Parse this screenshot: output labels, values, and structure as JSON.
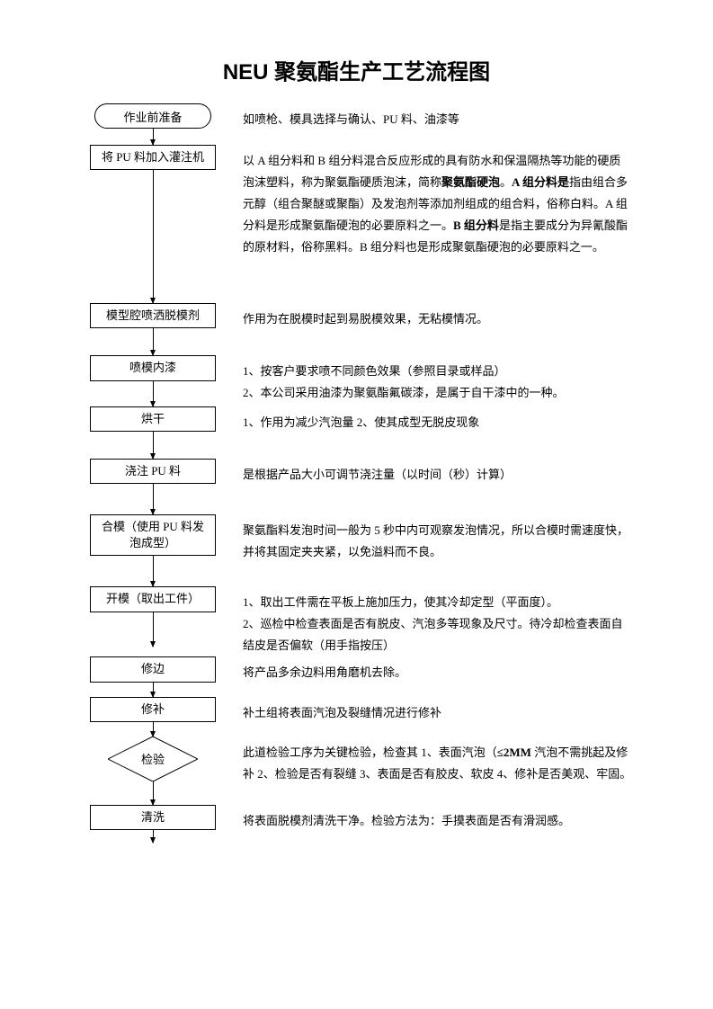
{
  "title": "NEU 聚氨酯生产工艺流程图",
  "colors": {
    "background": "#ffffff",
    "text": "#000000",
    "border": "#000000"
  },
  "flowchart": {
    "type": "flowchart",
    "orientation": "vertical",
    "node_border_color": "#000000",
    "node_fill": "#ffffff",
    "font_size_label": 13,
    "font_size_desc": 13,
    "arrow_length_default": 18,
    "nodes": [
      {
        "id": "n1",
        "shape": "terminator",
        "label": "作业前准备",
        "desc": "如喷枪、模具选择与确认、PU 料、油漆等",
        "arrow_after": 18
      },
      {
        "id": "n2",
        "shape": "process",
        "label": "将 PU 料加入灌注机",
        "desc_parts": [
          {
            "text": " 以 A 组分料和 B 组分料混合反应形成的具有防水和保温隔热等功能的硬质泡沫塑料，称为聚氨酯硬质泡沫，简称"
          },
          {
            "text": "聚氨酯硬泡",
            "bold": true
          },
          {
            "text": "。"
          },
          {
            "text": "A 组分料是",
            "bold": true
          },
          {
            "text": "指由组合多元醇（组合聚醚或聚酯）及发泡剂等添加剂组成的组合料，俗称白料。A 组分料是形成聚氨酯硬泡的必要原料之一。"
          },
          {
            "text": "B 组分料",
            "bold": true
          },
          {
            "text": "是指主要成分为异氰酸酯的原材料，俗称黑料。B 组分料也是形成聚氨酯硬泡的必要原料之一。"
          }
        ],
        "arrow_after": 148
      },
      {
        "id": "n3",
        "shape": "process",
        "label": "模型腔喷洒脱模剂",
        "desc": "作用为在脱模时起到易脱模效果，无粘模情况。",
        "arrow_after": 30
      },
      {
        "id": "n4",
        "shape": "process",
        "label": "喷模内漆",
        "desc": "1、按客户要求喷不同颜色效果（参照目录或样品）\n2、本公司采用油漆为聚氨酯氟碳漆，是属于自干漆中的一种。",
        "arrow_after": 28
      },
      {
        "id": "n5",
        "shape": "process",
        "label": "烘干",
        "desc": "1、作用为减少汽泡量 2、使其成型无脱皮现象",
        "arrow_after": 30
      },
      {
        "id": "n6",
        "shape": "process",
        "label": "浇注 PU 料",
        "desc": "是根据产品大小可调节浇注量（以时间（秒）计算）",
        "arrow_after": 34
      },
      {
        "id": "n7",
        "shape": "process",
        "label": "合模（使用 PU 料发泡成型）",
        "desc": "聚氨酯料发泡时间一般为 5 秒中内可观察发泡情况，所以合模时需速度快，并将其固定夹夹紧，以免溢料而不良。",
        "arrow_after": 34
      },
      {
        "id": "n8",
        "shape": "process",
        "label": "开模（取出工件）",
        "desc": "1、取出工件需在平板上施加压力，使其冷却定型（平面度）。\n2、巡检中检查表面是否有脱皮、汽泡多等现象及尺寸。待冷却检查表面自结皮是否偏软（用手指按压）",
        "arrow_after": 38
      },
      {
        "id": "n9",
        "shape": "process",
        "label": "修边",
        "desc": " 将产品多余边料用角磨机去除。",
        "arrow_after": 16
      },
      {
        "id": "n10",
        "shape": "process",
        "label": "修补",
        "desc": " 补土组将表面汽泡及裂缝情况进行修补",
        "arrow_after": 16
      },
      {
        "id": "n11",
        "shape": "decision",
        "label": "检验",
        "desc_parts": [
          {
            "text": "此道检验工序为关键检验，检查其 1、表面汽泡（"
          },
          {
            "text": "≤2MM",
            "bold": true
          },
          {
            "text": " 汽泡不需挑起及修补 2、检验是否有裂缝 3、表面是否有胶皮、软皮 4、修补是否美观、牢固。"
          }
        ],
        "arrow_after": 26
      },
      {
        "id": "n12",
        "shape": "process",
        "label": "清洗",
        "desc": "将表面脱模剂清洗干净。检验方法为：手摸表面是否有滑润感。",
        "arrow_after": 14
      }
    ]
  }
}
